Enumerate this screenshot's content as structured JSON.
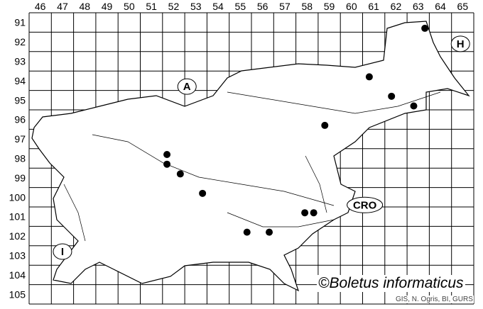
{
  "map": {
    "grid": {
      "columns": [
        "46",
        "47",
        "48",
        "49",
        "50",
        "51",
        "52",
        "53",
        "54",
        "55",
        "56",
        "57",
        "58",
        "59",
        "60",
        "61",
        "62",
        "63",
        "64",
        "65"
      ],
      "rows": [
        "91",
        "92",
        "93",
        "94",
        "95",
        "96",
        "97",
        "98",
        "99",
        "100",
        "101",
        "102",
        "103",
        "104",
        "105"
      ]
    },
    "countries": [
      {
        "label": "A",
        "col": 52.6,
        "row": 94.3
      },
      {
        "label": "H",
        "col": 64.9,
        "row": 92.1
      },
      {
        "label": "CRO",
        "col": 60.6,
        "row": 100.4
      },
      {
        "label": "I",
        "col": 47.0,
        "row": 102.8
      }
    ],
    "records": [
      {
        "col": 63.3,
        "row": 91.3
      },
      {
        "col": 60.8,
        "row": 93.8
      },
      {
        "col": 61.8,
        "row": 94.8
      },
      {
        "col": 62.8,
        "row": 95.3
      },
      {
        "col": 58.8,
        "row": 96.3
      },
      {
        "col": 51.7,
        "row": 97.8
      },
      {
        "col": 51.7,
        "row": 98.3
      },
      {
        "col": 52.3,
        "row": 98.8
      },
      {
        "col": 53.3,
        "row": 99.8
      },
      {
        "col": 57.9,
        "row": 100.8
      },
      {
        "col": 58.3,
        "row": 100.8
      },
      {
        "col": 55.3,
        "row": 101.8
      },
      {
        "col": 56.3,
        "row": 101.8
      }
    ],
    "marker_color": "#000000"
  },
  "credit": "©Boletus informaticus",
  "source": "GIS, N. Ogris, BI, GURS"
}
